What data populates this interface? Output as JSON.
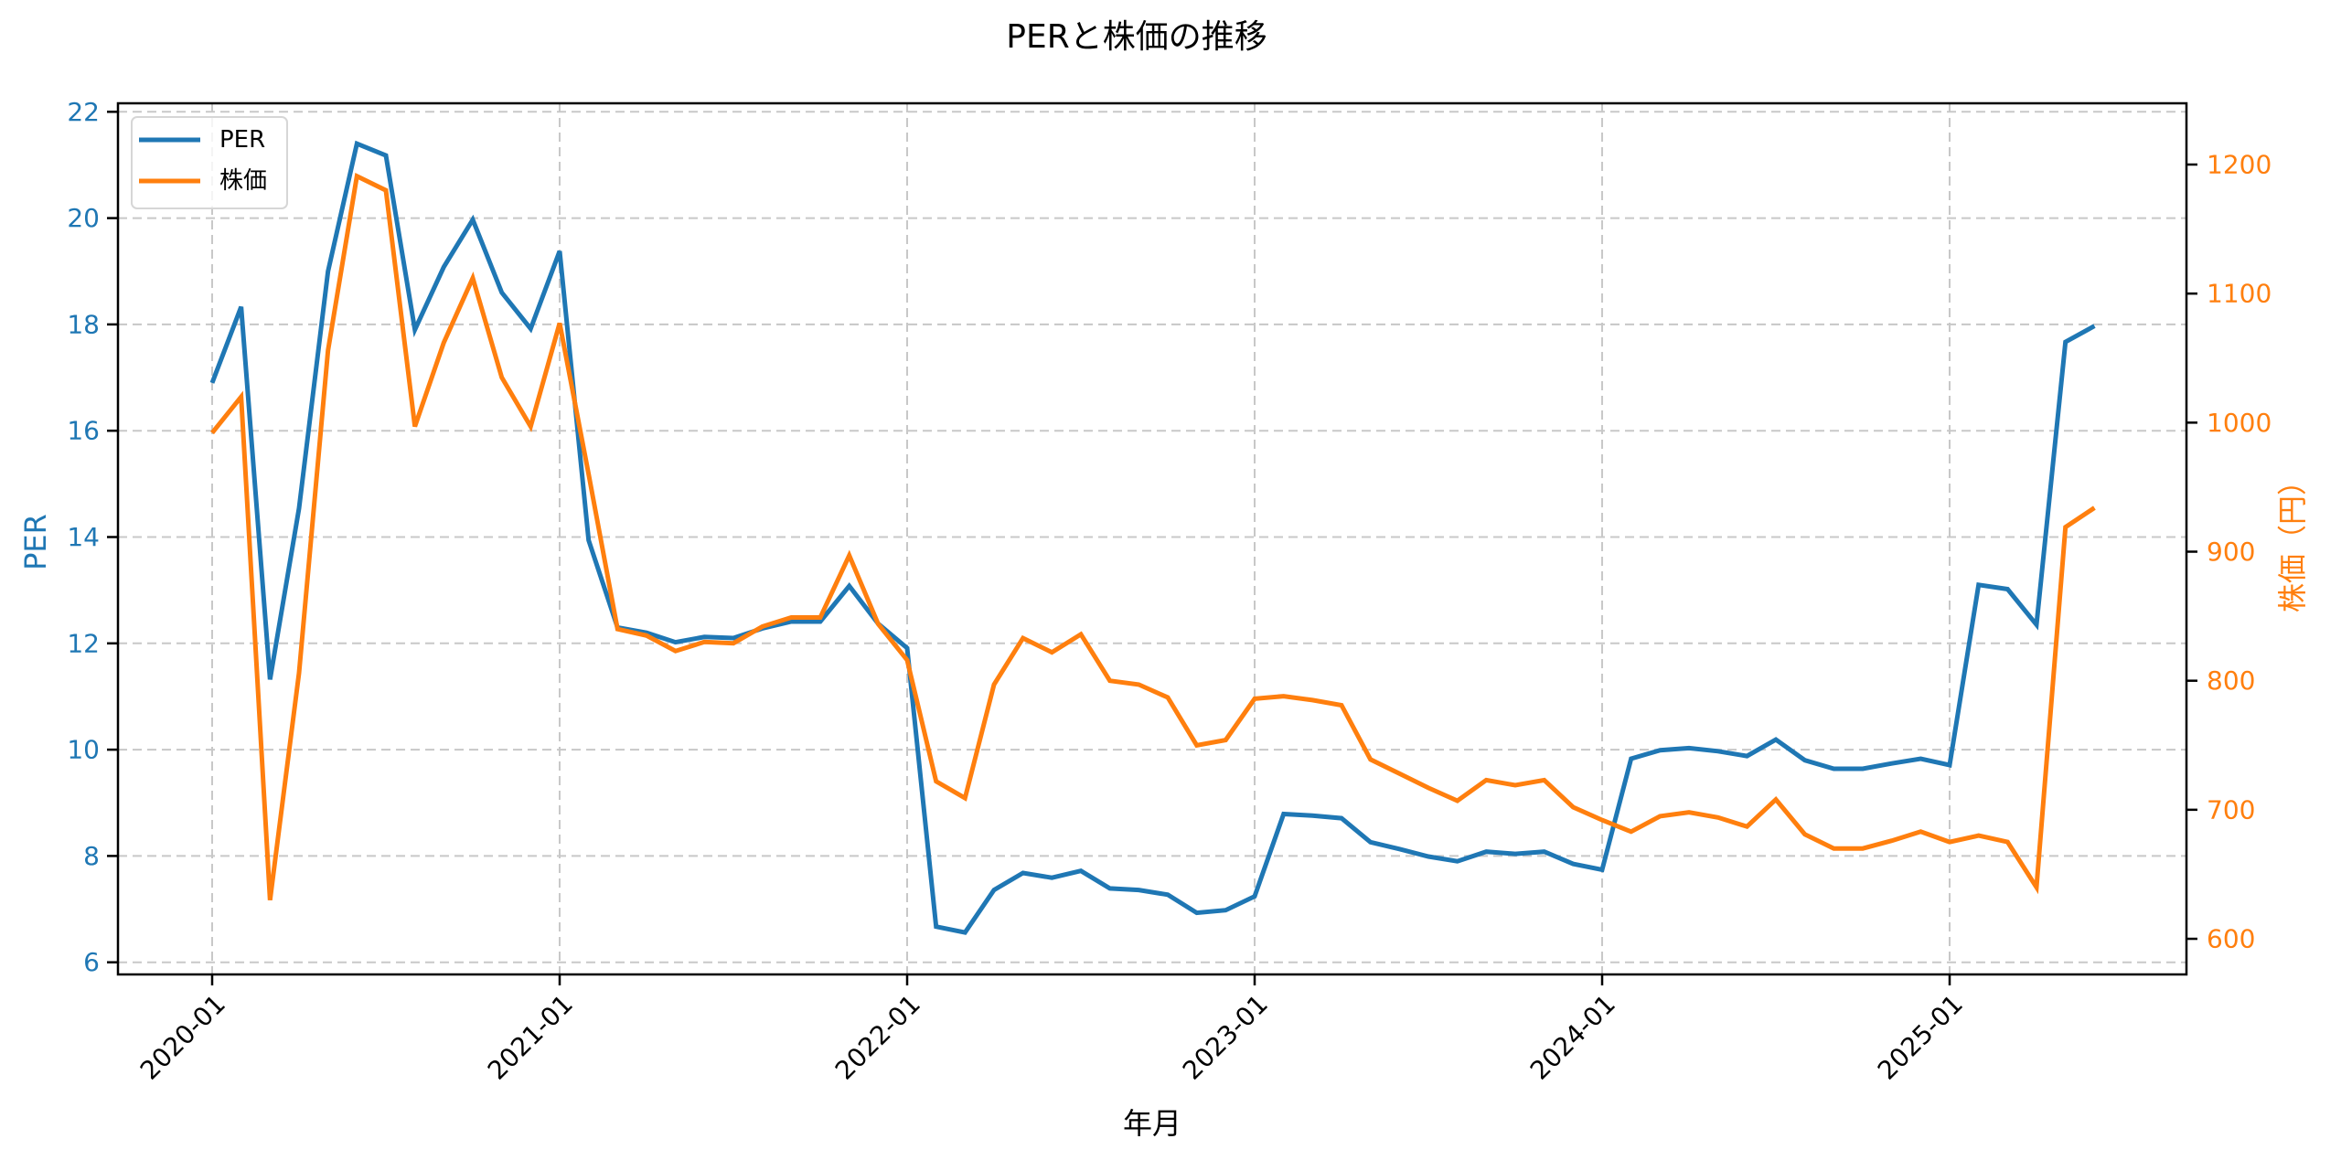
{
  "chart_data": {
    "type": "line",
    "title": "PERと株価の推移",
    "xlabel": "年月",
    "ylabel": "PER",
    "ylabel_right": "株価（円）",
    "grid": true,
    "legend_position": "upper left",
    "x_tick_labels": [
      "2020-01",
      "2021-01",
      "2022-01",
      "2023-01",
      "2024-01",
      "2025-01"
    ],
    "y_ticks_left": [
      6,
      8,
      10,
      12,
      14,
      16,
      18,
      20,
      22
    ],
    "y_ticks_right": [
      600,
      700,
      800,
      900,
      1000,
      1100,
      1200
    ],
    "ylim_left": [
      5.77,
      22.16
    ],
    "ylim_right": [
      572,
      1248
    ],
    "x": [
      "2020-01",
      "2020-02",
      "2020-03",
      "2020-04",
      "2020-05",
      "2020-06",
      "2020-07",
      "2020-08",
      "2020-09",
      "2020-10",
      "2020-11",
      "2020-12",
      "2021-01",
      "2021-02",
      "2021-03",
      "2021-04",
      "2021-05",
      "2021-06",
      "2021-07",
      "2021-08",
      "2021-09",
      "2021-10",
      "2021-11",
      "2021-12",
      "2022-01",
      "2022-02",
      "2022-03",
      "2022-04",
      "2022-05",
      "2022-06",
      "2022-07",
      "2022-08",
      "2022-09",
      "2022-10",
      "2022-11",
      "2022-12",
      "2023-01",
      "2023-02",
      "2023-03",
      "2023-04",
      "2023-05",
      "2023-06",
      "2023-07",
      "2023-08",
      "2023-09",
      "2023-10",
      "2023-11",
      "2023-12",
      "2024-01",
      "2024-02",
      "2024-03",
      "2024-04",
      "2024-05",
      "2024-06",
      "2024-07",
      "2024-08",
      "2024-09",
      "2024-10",
      "2024-11",
      "2024-12",
      "2025-01",
      "2025-02",
      "2025-03",
      "2025-04",
      "2025-05",
      "2025-06"
    ],
    "series": [
      {
        "name": "PER",
        "axis": "left",
        "color": "#1f77b4",
        "values": [
          16.9,
          18.33,
          11.32,
          14.54,
          19.0,
          21.4,
          21.18,
          17.9,
          19.08,
          19.97,
          18.6,
          17.92,
          19.38,
          13.94,
          12.3,
          12.2,
          12.02,
          12.12,
          12.1,
          12.28,
          12.41,
          12.41,
          13.08,
          12.37,
          11.91,
          6.67,
          6.56,
          7.36,
          7.68,
          7.59,
          7.72,
          7.39,
          7.36,
          7.27,
          6.93,
          6.98,
          7.24,
          8.79,
          8.76,
          8.71,
          8.26,
          8.13,
          7.99,
          7.9,
          8.08,
          8.04,
          8.08,
          7.85,
          7.74,
          9.83,
          9.99,
          10.03,
          9.97,
          9.88,
          10.19,
          9.8,
          9.64,
          9.64,
          9.74,
          9.83,
          9.71,
          13.1,
          13.02,
          12.35,
          17.67,
          17.97
        ]
      },
      {
        "name": "株価",
        "axis": "right",
        "color": "#ff7f0e",
        "values": [
          992,
          1020,
          630,
          806,
          1056,
          1191,
          1180,
          997,
          1062,
          1112,
          1035,
          997,
          1077,
          960,
          840,
          835,
          823,
          830,
          829,
          842,
          849,
          849,
          897,
          844,
          816,
          722,
          709,
          797,
          833,
          822,
          836,
          800,
          797,
          787,
          750,
          754,
          786,
          788,
          785,
          781,
          739,
          728,
          717,
          707,
          723,
          719,
          723,
          702,
          692,
          683,
          695,
          698,
          694,
          687,
          708,
          681,
          670,
          670,
          676,
          683,
          675,
          680,
          675,
          640,
          919,
          934
        ]
      }
    ],
    "colors": {
      "per": "#1f77b4",
      "price": "#ff7f0e",
      "grid": "#c8c8c8",
      "spine": "#000000"
    }
  }
}
